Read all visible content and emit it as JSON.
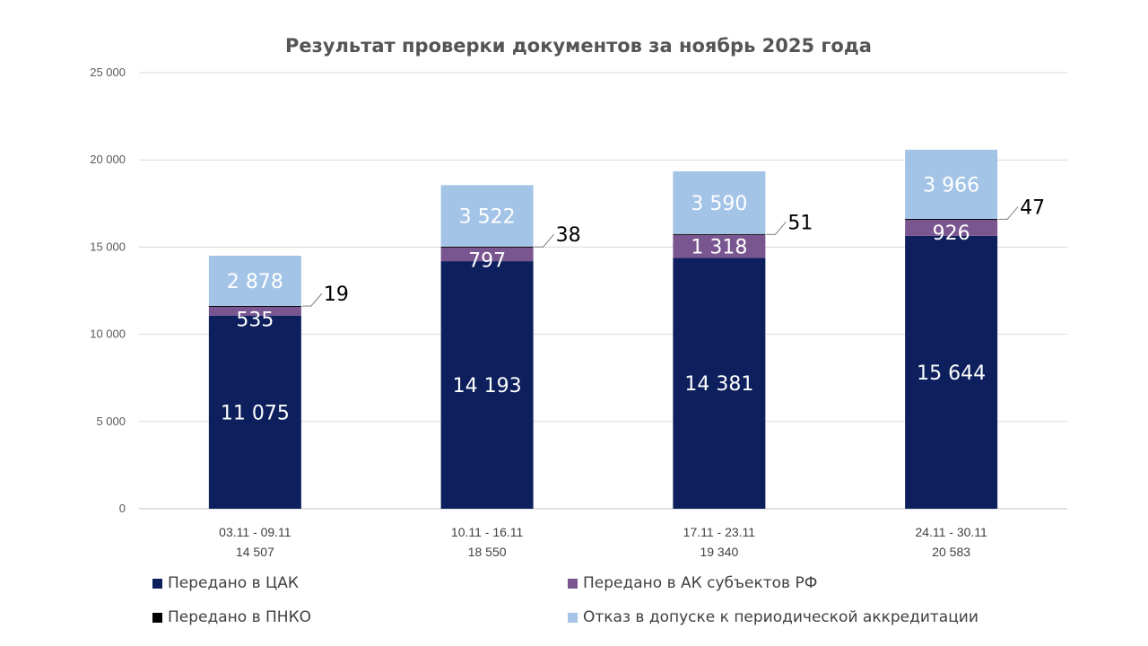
{
  "chart_data": {
    "type": "bar",
    "stacked": true,
    "title": "Результат проверки документов за ноябрь 2025 года",
    "xlabel": "",
    "ylabel": "",
    "ylim": [
      0,
      25000
    ],
    "y_ticks": [
      "0",
      "5 000",
      "10 000",
      "15 000",
      "20 000",
      "25 000"
    ],
    "y_tick_values": [
      0,
      5000,
      10000,
      15000,
      20000,
      25000
    ],
    "grid": true,
    "legend_position": "bottom",
    "categories": [
      {
        "period": "03.11 - 09.11",
        "total": "14 507"
      },
      {
        "period": "10.11 - 16.11",
        "total": "18 550"
      },
      {
        "period": "17.11 - 23.11",
        "total": "19 340"
      },
      {
        "period": "24.11 - 30.11",
        "total": "20 583"
      }
    ],
    "series": [
      {
        "name": "Передано в ЦАК",
        "color": "#0d1f5c",
        "values": [
          11075,
          14193,
          14381,
          15644
        ],
        "labels": [
          "11 075",
          "14 193",
          "14 381",
          "15 644"
        ],
        "label_style": "inside"
      },
      {
        "name": "Передано в АК субъектов РФ",
        "color": "#7a5690",
        "values": [
          535,
          797,
          1318,
          926
        ],
        "labels": [
          "535",
          "797",
          "1 318",
          "926"
        ],
        "label_style": "inside"
      },
      {
        "name": "Передано в ПНКО",
        "color": "#000000",
        "values": [
          19,
          38,
          51,
          47
        ],
        "labels": [
          "19",
          "38",
          "51",
          "47"
        ],
        "label_style": "callout"
      },
      {
        "name": "Отказ в допуске к периодической аккредитации",
        "color": "#a3c4e6",
        "values": [
          2878,
          3522,
          3590,
          3966
        ],
        "labels": [
          "2 878",
          "3 522",
          "3 590",
          "3 966"
        ],
        "label_style": "inside"
      }
    ]
  }
}
